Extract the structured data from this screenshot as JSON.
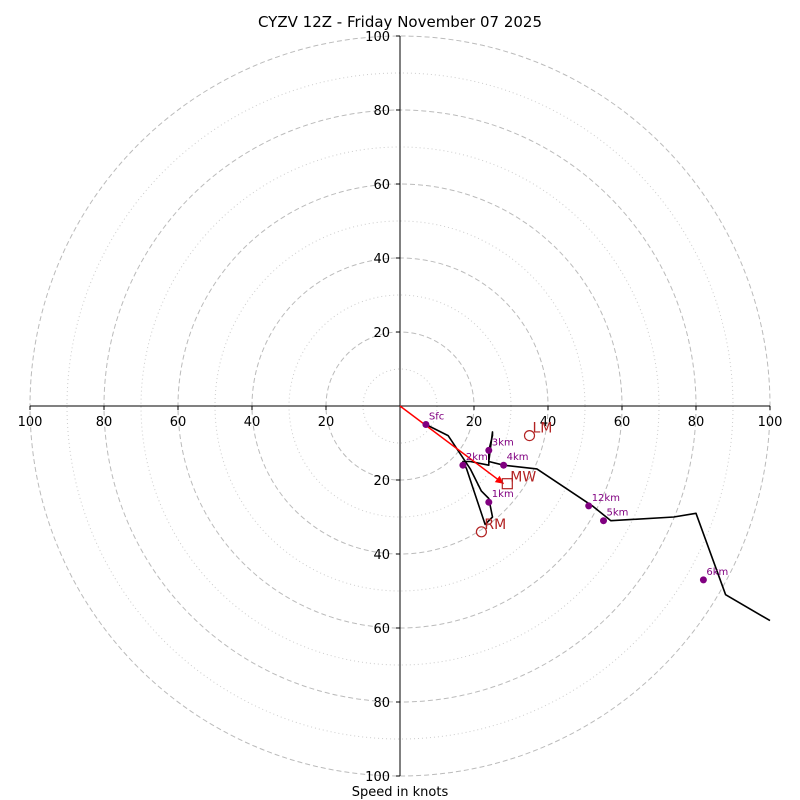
{
  "chart_data": {
    "type": "hodograph",
    "title": "CYZV 12Z - Friday November 07 2025",
    "xlabel": "Speed in knots",
    "xlim": [
      -100,
      100
    ],
    "ylim": [
      -100,
      100
    ],
    "rings_major": [
      20,
      40,
      60,
      80,
      100
    ],
    "rings_minor": [
      10,
      30,
      50,
      70,
      90
    ],
    "tick_values": [
      100,
      80,
      60,
      40,
      20
    ],
    "tick_labels": {
      "x_left": [
        "100",
        "80",
        "60",
        "40",
        "20"
      ],
      "x_right": [
        "20",
        "40",
        "60",
        "80",
        "100"
      ],
      "y_top": [
        "100",
        "80",
        "60",
        "40",
        "20"
      ],
      "y_bottom": [
        "20",
        "40",
        "60",
        "80",
        "100"
      ]
    },
    "hodograph_line": [
      [
        7,
        -5
      ],
      [
        13,
        -8
      ],
      [
        17,
        -14
      ],
      [
        19,
        -17
      ],
      [
        22,
        -23
      ],
      [
        24,
        -25
      ],
      [
        25,
        -30
      ],
      [
        23,
        -32
      ],
      [
        20,
        -23
      ],
      [
        18,
        -17
      ],
      [
        17,
        -15
      ],
      [
        19,
        -15
      ],
      [
        24,
        -16
      ],
      [
        24,
        -12
      ],
      [
        25,
        -8
      ],
      [
        25,
        -7
      ],
      [
        24,
        -15
      ],
      [
        28,
        -16
      ],
      [
        37,
        -17
      ],
      [
        52,
        -27
      ],
      [
        57,
        -31
      ],
      [
        74,
        -30
      ],
      [
        80,
        -29
      ],
      [
        88,
        -51
      ],
      [
        100,
        -58
      ]
    ],
    "height_markers": [
      {
        "label": "Sfc",
        "u": 7,
        "v": -5
      },
      {
        "label": "1km",
        "u": 24,
        "v": -26
      },
      {
        "label": "2km",
        "u": 17,
        "v": -16
      },
      {
        "label": "3km",
        "u": 24,
        "v": -12
      },
      {
        "label": "4km",
        "u": 28,
        "v": -16
      },
      {
        "label": "5km",
        "u": 55,
        "v": -31
      },
      {
        "label": "6km",
        "u": 82,
        "v": -47
      },
      {
        "label": "12km",
        "u": 51,
        "v": -27
      }
    ],
    "mean_wind": {
      "label": "MW",
      "u": 29,
      "v": -21
    },
    "shear_vector": {
      "from": [
        0,
        0
      ],
      "to": [
        28,
        -21
      ]
    },
    "right_mover": {
      "label": "RM",
      "u": 22,
      "v": -34
    },
    "left_mover": {
      "label": "LM",
      "u": 35,
      "v": -8
    },
    "colors": {
      "hodograph": "#000000",
      "markers": "#800080",
      "storm_motion": "#b22222",
      "shear": "#ff0000",
      "major_ring": "#bbbbbb",
      "minor_ring": "#cccccc",
      "axis": "#000000"
    }
  }
}
